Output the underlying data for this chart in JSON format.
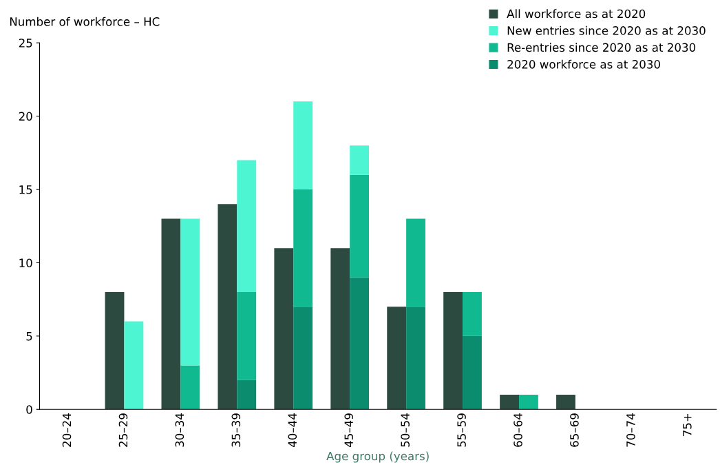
{
  "chart_data": {
    "type": "bar",
    "ylabel": "Number of workforce – HC",
    "xlabel": "Age group (years)",
    "categories": [
      "20–24",
      "25–29",
      "30–34",
      "35–39",
      "40–44",
      "45–49",
      "50–54",
      "55–59",
      "60–64",
      "65–69",
      "70–74",
      "75+"
    ],
    "series": [
      {
        "name": "All workforce as at 2020",
        "color": "#2d4a40",
        "values": [
          0,
          8,
          13,
          14,
          11,
          11,
          7,
          8,
          1,
          1,
          0,
          0
        ]
      },
      {
        "name": "2020 workforce as at 2030",
        "color": "#0b8c6e",
        "base": [
          null,
          null,
          null,
          0,
          0,
          0,
          0,
          0,
          null,
          null,
          null,
          null
        ],
        "values": [
          0,
          0,
          0,
          2,
          7,
          9,
          7,
          5,
          0,
          0,
          0,
          0
        ]
      },
      {
        "name": "Re-entries since 2020 as at 2030",
        "color": "#10b990",
        "base": [
          null,
          null,
          0,
          2,
          7,
          9,
          7,
          5,
          0,
          null,
          null,
          null
        ],
        "values": [
          0,
          0,
          3,
          6,
          8,
          7,
          6,
          3,
          1,
          0,
          0,
          0
        ]
      },
      {
        "name": "New entries since 2020 as at 2030",
        "color": "#4ef5d3",
        "base": [
          null,
          0,
          3,
          8,
          15,
          16,
          null,
          null,
          null,
          null,
          null,
          null
        ],
        "values": [
          0,
          6,
          10,
          9,
          6,
          2,
          0,
          0,
          0,
          0,
          0,
          0
        ]
      }
    ],
    "ylim": [
      0,
      25
    ],
    "yticks": [
      0,
      5,
      10,
      15,
      20,
      25
    ],
    "grid": false,
    "legend": "top right"
  }
}
